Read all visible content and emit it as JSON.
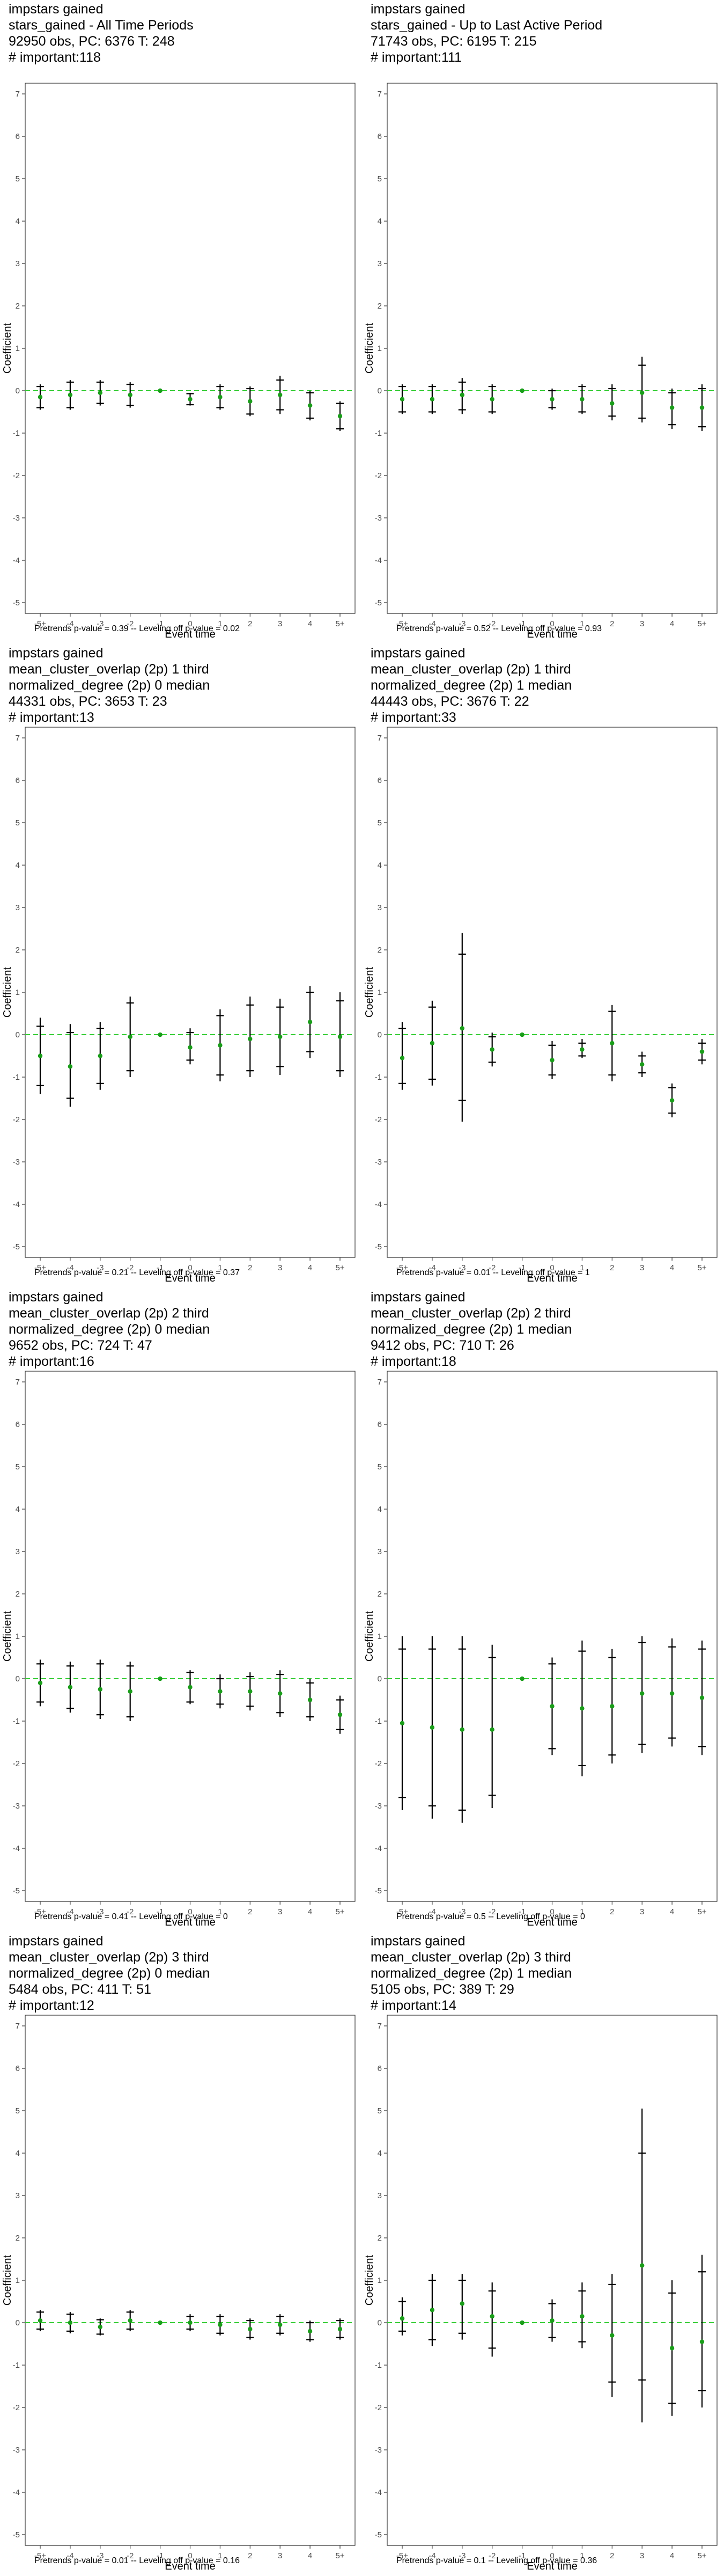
{
  "chart_data": [
    {
      "type": "scatter",
      "lines": [
        "impstars gained",
        "stars_gained - All Time Periods",
        "92950 obs, PC: 6376 T: 248",
        "# important:118"
      ],
      "footer": "Pretrends p-value = 0.39 -- Leveling off p-value = 0.02",
      "xlabel": "Event time",
      "ylabel": "Coefficient",
      "categories": [
        "-5+",
        "-4",
        "-3",
        "-2",
        "-1",
        "0",
        "1",
        "2",
        "3",
        "4",
        "5+"
      ],
      "yticks": [
        -5,
        -4,
        -3,
        -2,
        -1,
        0,
        1,
        2,
        3,
        4,
        5,
        6,
        7
      ],
      "ylim": [
        -5,
        7
      ],
      "estimate": [
        -0.15,
        -0.1,
        -0.05,
        -0.1,
        0,
        -0.2,
        -0.15,
        -0.25,
        -0.1,
        -0.35,
        -0.6
      ],
      "ci95_low": [
        -0.45,
        -0.45,
        -0.35,
        -0.4,
        0,
        -0.35,
        -0.45,
        -0.6,
        -0.55,
        -0.7,
        -0.95
      ],
      "ci95_high": [
        0.15,
        0.25,
        0.25,
        0.2,
        0,
        -0.05,
        0.15,
        0.1,
        0.35,
        0.0,
        -0.25
      ],
      "ci90_low": [
        -0.4,
        -0.4,
        -0.3,
        -0.35,
        0,
        -0.33,
        -0.4,
        -0.55,
        -0.45,
        -0.65,
        -0.9
      ],
      "ci90_high": [
        0.1,
        0.2,
        0.2,
        0.15,
        0,
        -0.07,
        0.1,
        0.05,
        0.25,
        -0.05,
        -0.3
      ]
    },
    {
      "type": "scatter",
      "lines": [
        "impstars gained",
        "stars_gained - Up to Last Active Period",
        "71743 obs, PC: 6195 T: 215",
        "# important:111"
      ],
      "footer": "Pretrends p-value = 0.52 -- Leveling off p-value = 0.93",
      "xlabel": "Event time",
      "ylabel": "Coefficient",
      "categories": [
        "-5+",
        "-4",
        "-3",
        "-2",
        "-1",
        "0",
        "1",
        "2",
        "3",
        "4",
        "5+"
      ],
      "yticks": [
        -5,
        -4,
        -3,
        -2,
        -1,
        0,
        1,
        2,
        3,
        4,
        5,
        6,
        7
      ],
      "ylim": [
        -5,
        7
      ],
      "estimate": [
        -0.2,
        -0.2,
        -0.1,
        -0.2,
        0,
        -0.2,
        -0.2,
        -0.3,
        -0.05,
        -0.4,
        -0.4
      ],
      "ci95_low": [
        -0.55,
        -0.55,
        -0.55,
        -0.55,
        0,
        -0.45,
        -0.55,
        -0.7,
        -0.75,
        -0.9,
        -0.95
      ],
      "ci95_high": [
        0.15,
        0.15,
        0.3,
        0.15,
        0,
        0.05,
        0.15,
        0.15,
        0.8,
        0.05,
        0.15
      ],
      "ci90_low": [
        -0.5,
        -0.5,
        -0.45,
        -0.5,
        0,
        -0.4,
        -0.5,
        -0.6,
        -0.65,
        -0.8,
        -0.85
      ],
      "ci90_high": [
        0.1,
        0.1,
        0.2,
        0.1,
        0,
        0.0,
        0.1,
        0.05,
        0.6,
        -0.05,
        0.05
      ]
    },
    {
      "type": "scatter",
      "lines": [
        "impstars gained",
        "mean_cluster_overlap (2p) 1 third",
        "normalized_degree (2p) 0 median",
        "44331 obs, PC: 3653 T: 23",
        "# important:13"
      ],
      "footer": "Pretrends p-value = 0.21 -- Leveling off p-value = 0.37",
      "xlabel": "Event time",
      "ylabel": "Coefficient",
      "categories": [
        "-5+",
        "-4",
        "-3",
        "-2",
        "-1",
        "0",
        "1",
        "2",
        "3",
        "4",
        "5+"
      ],
      "yticks": [
        -5,
        -4,
        -3,
        -2,
        -1,
        0,
        1,
        2,
        3,
        4,
        5,
        6,
        7
      ],
      "ylim": [
        -5,
        7
      ],
      "estimate": [
        -0.5,
        -0.75,
        -0.5,
        -0.05,
        0,
        -0.3,
        -0.25,
        -0.1,
        -0.05,
        0.3,
        -0.05
      ],
      "ci95_low": [
        -1.4,
        -1.7,
        -1.3,
        -1.0,
        0,
        -0.7,
        -1.1,
        -1.0,
        -0.95,
        -0.55,
        -1.0
      ],
      "ci95_high": [
        0.4,
        0.25,
        0.3,
        0.9,
        0,
        0.15,
        0.6,
        0.9,
        0.85,
        1.15,
        1.0
      ],
      "ci90_low": [
        -1.2,
        -1.5,
        -1.15,
        -0.85,
        0,
        -0.6,
        -0.95,
        -0.85,
        -0.75,
        -0.4,
        -0.85
      ],
      "ci90_high": [
        0.2,
        0.05,
        0.15,
        0.75,
        0,
        0.05,
        0.45,
        0.7,
        0.65,
        1.0,
        0.8
      ]
    },
    {
      "type": "scatter",
      "lines": [
        "impstars gained",
        "mean_cluster_overlap (2p) 1 third",
        "normalized_degree (2p) 1 median",
        "44443 obs, PC: 3676 T: 22",
        "# important:33"
      ],
      "footer": "Pretrends p-value = 0.01 -- Leveling off p-value = 1",
      "xlabel": "Event time",
      "ylabel": "Coefficient",
      "categories": [
        "-5+",
        "-4",
        "-3",
        "-2",
        "-1",
        "0",
        "1",
        "2",
        "3",
        "4",
        "5+"
      ],
      "yticks": [
        -5,
        -4,
        -3,
        -2,
        -1,
        0,
        1,
        2,
        3,
        4,
        5,
        6,
        7
      ],
      "ylim": [
        -5,
        7
      ],
      "estimate": [
        -0.55,
        -0.2,
        0.15,
        -0.35,
        0,
        -0.6,
        -0.35,
        -0.2,
        -0.7,
        -1.55,
        -0.4
      ],
      "ci95_low": [
        -1.3,
        -1.2,
        -2.05,
        -0.75,
        0,
        -1.05,
        -0.55,
        -1.1,
        -1.0,
        -1.95,
        -0.7
      ],
      "ci95_high": [
        0.3,
        0.8,
        2.4,
        0.05,
        0,
        -0.15,
        -0.1,
        0.7,
        -0.4,
        -1.15,
        -0.1
      ],
      "ci90_low": [
        -1.15,
        -1.05,
        -1.55,
        -0.65,
        0,
        -0.95,
        -0.5,
        -0.95,
        -0.9,
        -1.85,
        -0.6
      ],
      "ci90_high": [
        0.15,
        0.65,
        1.9,
        -0.05,
        0,
        -0.25,
        -0.2,
        0.55,
        -0.5,
        -1.25,
        -0.2
      ]
    },
    {
      "type": "scatter",
      "lines": [
        "impstars gained",
        "mean_cluster_overlap (2p) 2 third",
        "normalized_degree (2p) 0 median",
        "9652 obs, PC: 724 T: 47",
        "# important:16"
      ],
      "footer": "Pretrends p-value = 0.41 -- Leveling off p-value = 0",
      "xlabel": "Event time",
      "ylabel": "Coefficient",
      "categories": [
        "-5+",
        "-4",
        "-3",
        "-2",
        "-1",
        "0",
        "1",
        "2",
        "3",
        "4",
        "5+"
      ],
      "yticks": [
        -5,
        -4,
        -3,
        -2,
        -1,
        0,
        1,
        2,
        3,
        4,
        5,
        6,
        7
      ],
      "ylim": [
        -5,
        7
      ],
      "estimate": [
        -0.1,
        -0.2,
        -0.25,
        -0.3,
        0,
        -0.2,
        -0.3,
        -0.3,
        -0.35,
        -0.5,
        -0.85
      ],
      "ci95_low": [
        -0.65,
        -0.8,
        -0.95,
        -1.0,
        0,
        -0.6,
        -0.7,
        -0.75,
        -0.9,
        -1.0,
        -1.3
      ],
      "ci95_high": [
        0.45,
        0.4,
        0.45,
        0.4,
        0,
        0.2,
        0.1,
        0.15,
        0.2,
        0.0,
        -0.4
      ],
      "ci90_low": [
        -0.55,
        -0.7,
        -0.85,
        -0.9,
        0,
        -0.55,
        -0.6,
        -0.65,
        -0.8,
        -0.9,
        -1.2
      ],
      "ci90_high": [
        0.35,
        0.3,
        0.35,
        0.3,
        0,
        0.15,
        0.0,
        0.05,
        0.1,
        -0.1,
        -0.5
      ]
    },
    {
      "type": "scatter",
      "lines": [
        "impstars gained",
        "mean_cluster_overlap (2p) 2 third",
        "normalized_degree (2p) 1 median",
        "9412 obs, PC: 710 T: 26",
        "# important:18"
      ],
      "footer": "Pretrends p-value = 0.5 -- Leveling off p-value = 0",
      "xlabel": "Event time",
      "ylabel": "Coefficient",
      "categories": [
        "-5+",
        "-4",
        "-3",
        "-2",
        "-1",
        "0",
        "1",
        "2",
        "3",
        "4",
        "5+"
      ],
      "yticks": [
        -5,
        -4,
        -3,
        -2,
        -1,
        0,
        1,
        2,
        3,
        4,
        5,
        6,
        7
      ],
      "ylim": [
        -5,
        7
      ],
      "estimate": [
        -1.05,
        -1.15,
        -1.2,
        -1.2,
        0,
        -0.65,
        -0.7,
        -0.65,
        -0.35,
        -0.35,
        -0.45
      ],
      "ci95_low": [
        -3.1,
        -3.3,
        -3.4,
        -3.05,
        0,
        -1.8,
        -2.3,
        -2.0,
        -1.75,
        -1.6,
        -1.8
      ],
      "ci95_high": [
        1.0,
        1.0,
        1.0,
        0.8,
        0,
        0.5,
        0.9,
        0.7,
        1.0,
        0.95,
        0.9
      ],
      "ci90_low": [
        -2.8,
        -3.0,
        -3.1,
        -2.75,
        0,
        -1.65,
        -2.05,
        -1.8,
        -1.55,
        -1.4,
        -1.6
      ],
      "ci90_high": [
        0.7,
        0.7,
        0.7,
        0.5,
        0,
        0.35,
        0.65,
        0.5,
        0.85,
        0.75,
        0.7
      ]
    },
    {
      "type": "scatter",
      "lines": [
        "impstars gained",
        "mean_cluster_overlap (2p) 3 third",
        "normalized_degree (2p) 0 median",
        "5484 obs, PC: 411 T: 51",
        "# important:12"
      ],
      "footer": "Pretrends p-value = 0.01 -- Leveling off p-value = 0.16",
      "xlabel": "Event time",
      "ylabel": "Coefficient",
      "categories": [
        "-5+",
        "-4",
        "-3",
        "-2",
        "-1",
        "0",
        "1",
        "2",
        "3",
        "4",
        "5+"
      ],
      "yticks": [
        -5,
        -4,
        -3,
        -2,
        -1,
        0,
        1,
        2,
        3,
        4,
        5,
        6,
        7
      ],
      "ylim": [
        -5,
        7
      ],
      "estimate": [
        0.05,
        0.0,
        -0.1,
        0.05,
        0,
        0.0,
        -0.05,
        -0.15,
        -0.05,
        -0.2,
        -0.15
      ],
      "ci95_low": [
        -0.2,
        -0.25,
        -0.3,
        -0.2,
        0,
        -0.2,
        -0.3,
        -0.4,
        -0.3,
        -0.45,
        -0.4
      ],
      "ci95_high": [
        0.3,
        0.25,
        0.1,
        0.3,
        0,
        0.2,
        0.2,
        0.1,
        0.2,
        0.05,
        0.1
      ],
      "ci90_low": [
        -0.15,
        -0.2,
        -0.27,
        -0.15,
        0,
        -0.15,
        -0.25,
        -0.35,
        -0.25,
        -0.4,
        -0.35
      ],
      "ci90_high": [
        0.25,
        0.2,
        0.07,
        0.25,
        0,
        0.15,
        0.15,
        0.05,
        0.15,
        0.0,
        0.05
      ]
    },
    {
      "type": "scatter",
      "lines": [
        "impstars gained",
        "mean_cluster_overlap (2p) 3 third",
        "normalized_degree (2p) 1 median",
        "5105 obs, PC: 389 T: 29",
        "# important:14"
      ],
      "footer": "Pretrends p-value = 0.1 -- Leveling off p-value = 0.36",
      "xlabel": "Event time",
      "ylabel": "Coefficient",
      "categories": [
        "-5+",
        "-4",
        "-3",
        "-2",
        "-1",
        "0",
        "1",
        "2",
        "3",
        "4",
        "5+"
      ],
      "yticks": [
        -5,
        -4,
        -3,
        -2,
        -1,
        0,
        1,
        2,
        3,
        4,
        5,
        6,
        7
      ],
      "ylim": [
        -5,
        7
      ],
      "estimate": [
        0.1,
        0.3,
        0.45,
        0.15,
        0,
        0.05,
        0.15,
        -0.3,
        1.35,
        -0.6,
        -0.45
      ],
      "ci95_low": [
        -0.3,
        -0.55,
        -0.4,
        -0.8,
        0,
        -0.45,
        -0.6,
        -1.75,
        -2.35,
        -2.2,
        -2.0
      ],
      "ci95_high": [
        0.6,
        1.15,
        1.15,
        0.95,
        0,
        0.55,
        0.95,
        1.15,
        5.05,
        1.0,
        1.6
      ],
      "ci90_low": [
        -0.2,
        -0.4,
        -0.25,
        -0.6,
        0,
        -0.35,
        -0.45,
        -1.4,
        -1.35,
        -1.9,
        -1.6
      ],
      "ci90_high": [
        0.5,
        1.0,
        1.0,
        0.75,
        0,
        0.45,
        0.75,
        0.9,
        4.0,
        0.7,
        1.2
      ]
    }
  ],
  "colors": {
    "point": "#1a9e1a",
    "zero_line": "#33cc33",
    "error_bar": "#000000",
    "axis": "#333333",
    "tick_text": "#4d4d4d"
  }
}
